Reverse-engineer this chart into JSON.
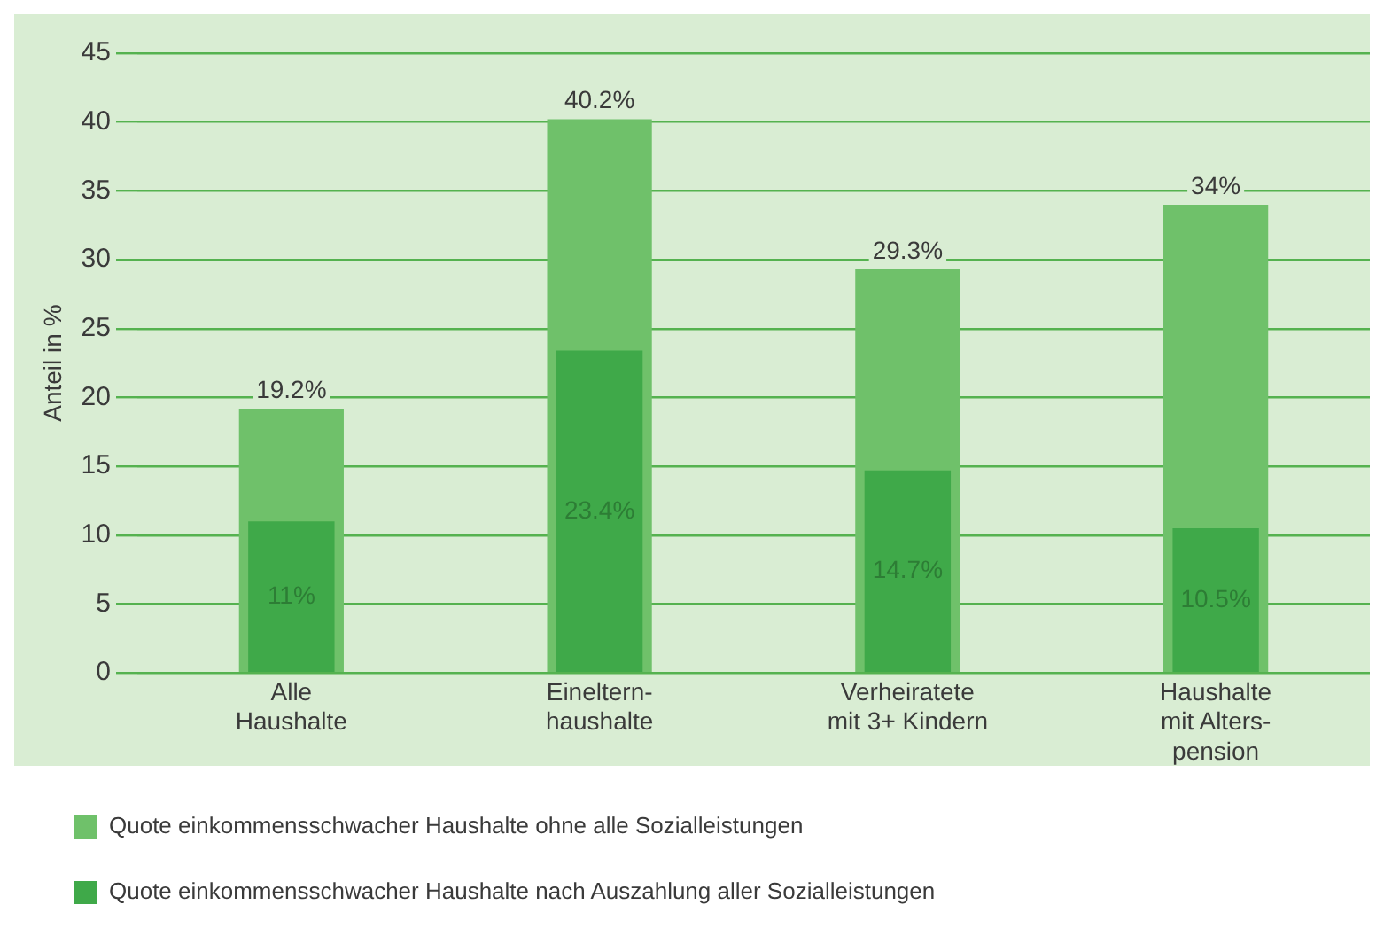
{
  "chart_data": {
    "type": "bar",
    "ylabel": "Anteil in %",
    "categories": [
      "Alle\nHaushalte",
      "Eineltern-\nhaushalte",
      "Verheiratete\nmit 3+ Kindern",
      "Haushalte\nmit Alters-\npension"
    ],
    "series": [
      {
        "name": "Quote einkommensschwacher Haushalte ohne alle Sozialleistungen",
        "color": "#6fc16a",
        "values": [
          19.2,
          40.2,
          29.3,
          34
        ],
        "value_labels": [
          "19.2%",
          "40.2%",
          "29.3%",
          "34%"
        ]
      },
      {
        "name": "Quote einkommensschwacher Haushalte nach Auszahlung aller Sozialleistungen",
        "color": "#3fa949",
        "values": [
          11,
          23.4,
          14.7,
          10.5
        ],
        "value_labels": [
          "11%",
          "23.4%",
          "14.7%",
          "10.5%"
        ]
      }
    ],
    "ylim": [
      0,
      45
    ],
    "yticks": [
      0,
      5,
      10,
      15,
      20,
      25,
      30,
      35,
      40,
      45
    ],
    "grid": "y",
    "legend": "bottom"
  }
}
